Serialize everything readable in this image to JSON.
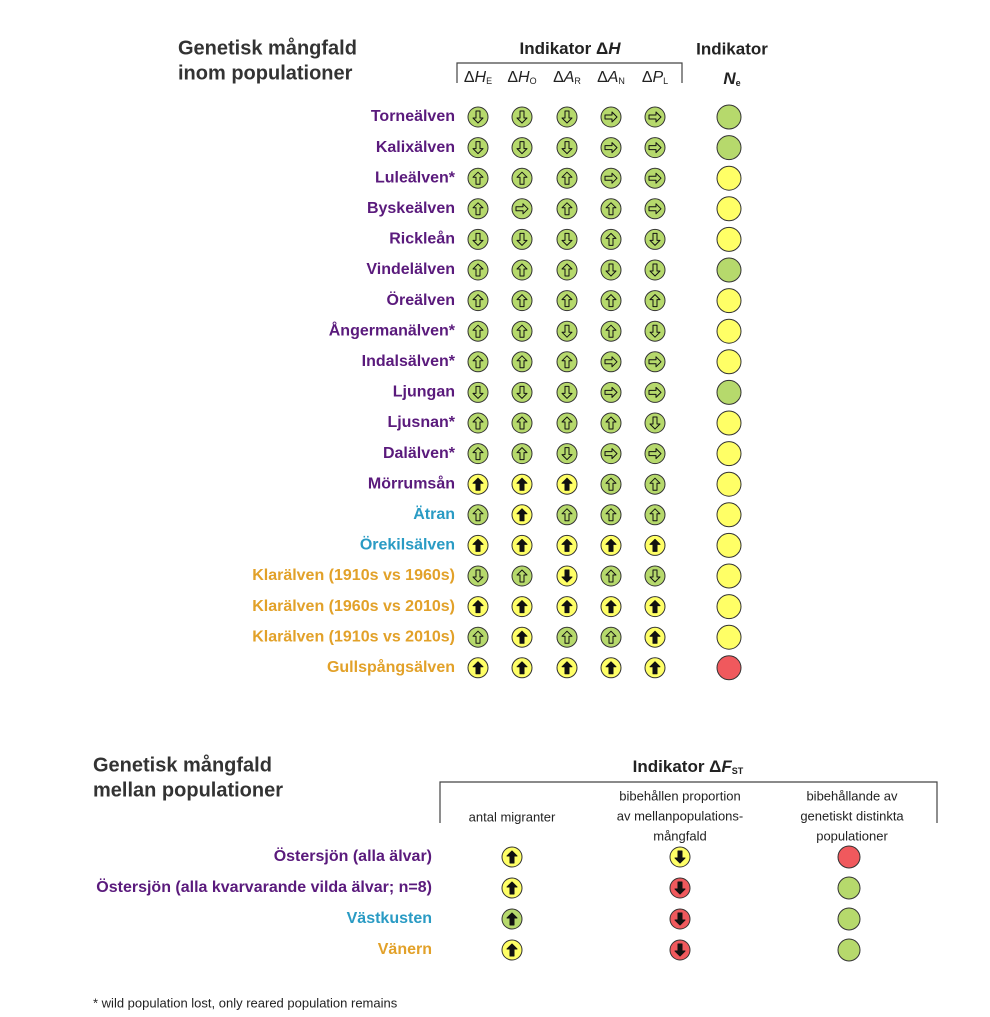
{
  "palette": {
    "green": "#b6d96c",
    "yellow": "#ffff66",
    "red": "#f0595d",
    "purple": "#5a1a7c",
    "teal": "#2a9bc4",
    "orange": "#e2a129"
  },
  "inom": {
    "title": [
      "Genetisk mångfald",
      "inom populationer"
    ],
    "group_header": {
      "text": "Indikator Δ",
      "letter": "H"
    },
    "columns": [
      {
        "prefix": "Δ",
        "letter": "H",
        "sub": "E"
      },
      {
        "prefix": "Δ",
        "letter": "H",
        "sub": "O"
      },
      {
        "prefix": "Δ",
        "letter": "A",
        "sub": "R"
      },
      {
        "prefix": "Δ",
        "letter": "A",
        "sub": "N"
      },
      {
        "prefix": "Δ",
        "letter": "P",
        "sub": "L"
      }
    ],
    "ne_header": {
      "title": "Indikator",
      "letter": "N",
      "sub": "e"
    },
    "rows": [
      {
        "name": "Torneälven",
        "color": "purple",
        "cells": [
          "green down",
          "green down",
          "green down",
          "green right",
          "green right"
        ],
        "ne": "green"
      },
      {
        "name": "Kalixälven",
        "color": "purple",
        "cells": [
          "green down",
          "green down",
          "green down",
          "green right",
          "green right"
        ],
        "ne": "green"
      },
      {
        "name": "Luleälven*",
        "color": "purple",
        "cells": [
          "green up",
          "green up",
          "green up",
          "green right",
          "green right"
        ],
        "ne": "yellow"
      },
      {
        "name": "Byskeälven",
        "color": "purple",
        "cells": [
          "green up",
          "green right",
          "green up",
          "green up",
          "green right"
        ],
        "ne": "yellow"
      },
      {
        "name": "Rickleån",
        "color": "purple",
        "cells": [
          "green down",
          "green down",
          "green down",
          "green up",
          "green down"
        ],
        "ne": "yellow"
      },
      {
        "name": "Vindelälven",
        "color": "purple",
        "cells": [
          "green up",
          "green up",
          "green up",
          "green down",
          "green down"
        ],
        "ne": "green"
      },
      {
        "name": "Öreälven",
        "color": "purple",
        "cells": [
          "green up",
          "green up",
          "green up",
          "green up",
          "green up"
        ],
        "ne": "yellow"
      },
      {
        "name": "Ångermanälven*",
        "color": "purple",
        "cells": [
          "green up",
          "green up",
          "green down",
          "green up",
          "green down"
        ],
        "ne": "yellow"
      },
      {
        "name": "Indalsälven*",
        "color": "purple",
        "cells": [
          "green up",
          "green up",
          "green up",
          "green right",
          "green right"
        ],
        "ne": "yellow"
      },
      {
        "name": "Ljungan",
        "color": "purple",
        "cells": [
          "green down",
          "green down",
          "green down",
          "green right",
          "green right"
        ],
        "ne": "green"
      },
      {
        "name": "Ljusnan*",
        "color": "purple",
        "cells": [
          "green up",
          "green up",
          "green up",
          "green up",
          "green down"
        ],
        "ne": "yellow"
      },
      {
        "name": "Dalälven*",
        "color": "purple",
        "cells": [
          "green up",
          "green up",
          "green down",
          "green right",
          "green right"
        ],
        "ne": "yellow"
      },
      {
        "name": "Mörrumsån",
        "color": "purple",
        "cells": [
          "yellow up solid",
          "yellow up solid",
          "yellow up solid",
          "green up",
          "green up"
        ],
        "ne": "yellow"
      },
      {
        "name": "Ätran",
        "color": "teal",
        "cells": [
          "green up",
          "yellow up solid",
          "green up",
          "green up",
          "green up"
        ],
        "ne": "yellow"
      },
      {
        "name": "Örekilsälven",
        "color": "teal",
        "cells": [
          "yellow up solid",
          "yellow up solid",
          "yellow up solid",
          "yellow up solid",
          "yellow up solid"
        ],
        "ne": "yellow"
      },
      {
        "name": "Klarälven (1910s vs 1960s)",
        "color": "orange",
        "cells": [
          "green down",
          "green up",
          "yellow down solid",
          "green up",
          "green down"
        ],
        "ne": "yellow"
      },
      {
        "name": "Klarälven (1960s vs 2010s)",
        "color": "orange",
        "cells": [
          "yellow up solid",
          "yellow up solid",
          "yellow up solid",
          "yellow up solid",
          "yellow up solid"
        ],
        "ne": "yellow"
      },
      {
        "name": "Klarälven (1910s vs 2010s)",
        "color": "orange",
        "cells": [
          "green up",
          "yellow up solid",
          "green up",
          "green up",
          "yellow up solid"
        ],
        "ne": "yellow"
      },
      {
        "name": "Gullspångsälven",
        "color": "orange",
        "cells": [
          "yellow up solid",
          "yellow up solid",
          "yellow up solid",
          "yellow up solid",
          "yellow up solid"
        ],
        "ne": "red"
      }
    ]
  },
  "mellan": {
    "title": [
      "Genetisk mångfald",
      "mellan populationer"
    ],
    "group_header": {
      "text": "Indikator Δ",
      "letter": "F",
      "sub": "ST"
    },
    "columns": [
      [
        "antal migranter"
      ],
      [
        "bibehållen proportion",
        "av mellanpopulations-",
        "mångfald"
      ],
      [
        "bibehållande av",
        "genetiskt distinkta",
        "populationer"
      ]
    ],
    "rows": [
      {
        "name": "Östersjön (alla älvar)",
        "color": "purple",
        "cells": [
          "yellow up solid",
          "yellow down solid",
          "red"
        ]
      },
      {
        "name": "Östersjön (alla kvarvarande vilda älvar; n=8)",
        "color": "purple",
        "cells": [
          "yellow up solid",
          "red down solid",
          "green"
        ]
      },
      {
        "name": "Västkusten",
        "color": "teal",
        "cells": [
          "green up solid",
          "red down solid",
          "green"
        ]
      },
      {
        "name": "Vänern",
        "color": "orange",
        "cells": [
          "yellow up solid",
          "red down solid",
          "green"
        ]
      }
    ]
  },
  "footnote": "* wild population lost, only reared population remains"
}
